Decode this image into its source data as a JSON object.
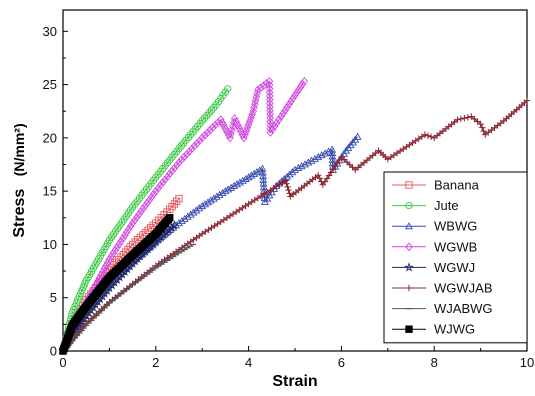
{
  "chart_data": {
    "type": "line",
    "title": "",
    "xlabel": "Strain",
    "ylabel": "Stress",
    "ylabel_unit": "(N/mm²)",
    "xlim": [
      0,
      10
    ],
    "ylim": [
      0,
      32
    ],
    "xticks": [
      0,
      2,
      4,
      6,
      8,
      10
    ],
    "yticks": [
      0,
      5,
      10,
      15,
      20,
      25,
      30
    ],
    "grid": false,
    "legend_position": "bottom-right",
    "series": [
      {
        "name": "Banana",
        "color": "#e2595f",
        "marker": "square-open",
        "x": [
          0,
          0.2,
          0.5,
          1.0,
          1.5,
          2.0,
          2.3,
          2.5
        ],
        "y": [
          0,
          2.5,
          4.8,
          7.6,
          10.0,
          12.0,
          13.3,
          14.3
        ]
      },
      {
        "name": "Jute",
        "color": "#39c83f",
        "marker": "circle-open",
        "x": [
          0,
          0.2,
          0.5,
          1.0,
          1.5,
          2.0,
          2.5,
          3.0,
          3.3,
          3.55
        ],
        "y": [
          0,
          3.6,
          6.6,
          10.4,
          13.5,
          16.3,
          19.0,
          21.6,
          23.1,
          24.6
        ]
      },
      {
        "name": "WBWG",
        "color": "#3a4bb0",
        "marker": "triangle-open",
        "x": [
          0,
          0.5,
          1.0,
          1.5,
          2.0,
          2.5,
          3.0,
          3.5,
          4.0,
          4.3,
          4.35,
          4.6,
          5.0,
          5.5,
          5.8,
          5.82,
          6.1,
          6.35
        ],
        "y": [
          0,
          3.6,
          6.2,
          8.4,
          10.3,
          12.0,
          13.6,
          15.0,
          16.3,
          17.1,
          14.0,
          15.5,
          17.0,
          18.2,
          18.9,
          17.0,
          18.8,
          20.1
        ]
      },
      {
        "name": "WGWB",
        "color": "#d04be0",
        "marker": "diamond-open",
        "x": [
          0,
          0.5,
          1.0,
          1.5,
          2.0,
          2.5,
          3.0,
          3.4,
          3.6,
          3.7,
          3.9,
          4.1,
          4.2,
          4.45,
          4.47,
          4.7,
          5.0,
          5.2
        ],
        "y": [
          0,
          4.5,
          8.6,
          12.0,
          15.0,
          17.7,
          20.0,
          21.7,
          20.0,
          21.8,
          20.0,
          22.5,
          24.5,
          25.3,
          20.5,
          22.0,
          24.0,
          25.3
        ]
      },
      {
        "name": "WGWJ",
        "color": "#222a66",
        "marker": "star-open",
        "x": [
          0,
          0.5,
          1.0,
          1.5,
          2.0,
          2.4
        ],
        "y": [
          0,
          3.3,
          5.9,
          8.2,
          10.2,
          11.8
        ]
      },
      {
        "name": "WGWJAB",
        "color": "#8a2430",
        "marker": "plus",
        "x": [
          0,
          0.5,
          1.0,
          2.0,
          3.0,
          4.0,
          4.8,
          4.9,
          5.5,
          5.6,
          6.0,
          6.3,
          6.8,
          7.0,
          7.8,
          8.0,
          8.5,
          8.8,
          9.0,
          9.1,
          9.5,
          10.0
        ],
        "y": [
          0,
          2.6,
          4.6,
          8.0,
          11.0,
          13.8,
          16.0,
          14.5,
          16.5,
          15.6,
          18.2,
          17.0,
          18.8,
          18.0,
          20.3,
          20.0,
          21.7,
          22.0,
          21.3,
          20.3,
          21.6,
          23.5
        ]
      },
      {
        "name": "WJABWG",
        "color": "#555555",
        "marker": "dash",
        "x": [
          0,
          0.5,
          1.0,
          1.5,
          2.0,
          2.5,
          2.8
        ],
        "y": [
          0,
          2.4,
          4.5,
          6.2,
          7.8,
          9.2,
          10.0
        ]
      },
      {
        "name": "WJWG",
        "color": "#000000",
        "marker": "square-filled",
        "x": [
          0,
          0.2,
          0.5,
          1.0,
          1.5,
          2.0,
          2.3
        ],
        "y": [
          0,
          2.4,
          4.2,
          6.9,
          9.0,
          11.0,
          12.5
        ]
      }
    ]
  }
}
